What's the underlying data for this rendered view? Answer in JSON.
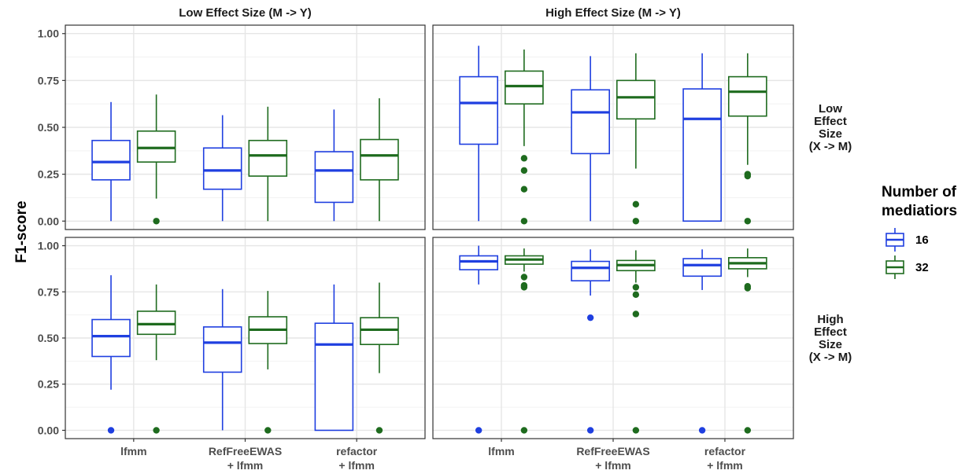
{
  "chart_data": {
    "type": "boxplot",
    "y_axis_title": "F1-score",
    "y_ticks": [
      "0.00",
      "0.25",
      "0.50",
      "0.75",
      "1.00"
    ],
    "y_tick_values": [
      0,
      0.25,
      0.5,
      0.75,
      1.0
    ],
    "ylim": [
      0,
      1
    ],
    "categories": [
      [
        "lfmm"
      ],
      [
        "RefFreeEWAS",
        "+ lfmm"
      ],
      [
        "refactor",
        "+ lfmm"
      ]
    ],
    "column_strips": [
      "Low Effect Size (M -> Y)",
      "High Effect Size (M -> Y)"
    ],
    "row_strips": [
      [
        "Low",
        "Effect",
        "Size",
        "(X -> M)"
      ],
      [
        "High",
        "Effect",
        "Size",
        "(X -> M)"
      ]
    ],
    "legend": {
      "title": [
        "Number of",
        "mediatiors"
      ],
      "entries": [
        {
          "label": "16",
          "color": "#1f3fe0"
        },
        {
          "label": "32",
          "color": "#1e6b1e"
        }
      ]
    },
    "grid": true,
    "legend_position": "right",
    "panels": [
      {
        "row": 0,
        "col": 0,
        "boxes": [
          {
            "cat": 0,
            "series": 0,
            "min": 0.0,
            "q1": 0.22,
            "median": 0.315,
            "q3": 0.43,
            "max": 0.635,
            "outliers": []
          },
          {
            "cat": 0,
            "series": 1,
            "min": 0.12,
            "q1": 0.315,
            "median": 0.39,
            "q3": 0.48,
            "max": 0.675,
            "outliers": [
              0.0
            ]
          },
          {
            "cat": 1,
            "series": 0,
            "min": 0.0,
            "q1": 0.17,
            "median": 0.27,
            "q3": 0.39,
            "max": 0.565,
            "outliers": []
          },
          {
            "cat": 1,
            "series": 1,
            "min": 0.0,
            "q1": 0.24,
            "median": 0.35,
            "q3": 0.43,
            "max": 0.61,
            "outliers": []
          },
          {
            "cat": 2,
            "series": 0,
            "min": 0.0,
            "q1": 0.1,
            "median": 0.27,
            "q3": 0.37,
            "max": 0.595,
            "outliers": []
          },
          {
            "cat": 2,
            "series": 1,
            "min": 0.0,
            "q1": 0.22,
            "median": 0.35,
            "q3": 0.435,
            "max": 0.655,
            "outliers": []
          }
        ]
      },
      {
        "row": 0,
        "col": 1,
        "boxes": [
          {
            "cat": 0,
            "series": 0,
            "min": 0.0,
            "q1": 0.41,
            "median": 0.63,
            "q3": 0.77,
            "max": 0.935,
            "outliers": []
          },
          {
            "cat": 0,
            "series": 1,
            "min": 0.4,
            "q1": 0.625,
            "median": 0.72,
            "q3": 0.8,
            "max": 0.915,
            "outliers": [
              0.335,
              0.27,
              0.17,
              0.0
            ]
          },
          {
            "cat": 1,
            "series": 0,
            "min": 0.0,
            "q1": 0.36,
            "median": 0.58,
            "q3": 0.7,
            "max": 0.88,
            "outliers": []
          },
          {
            "cat": 1,
            "series": 1,
            "min": 0.28,
            "q1": 0.545,
            "median": 0.66,
            "q3": 0.75,
            "max": 0.895,
            "outliers": [
              0.09,
              0.0
            ]
          },
          {
            "cat": 2,
            "series": 0,
            "min": 0.0,
            "q1": 0.0,
            "median": 0.545,
            "q3": 0.705,
            "max": 0.895,
            "outliers": []
          },
          {
            "cat": 2,
            "series": 1,
            "min": 0.3,
            "q1": 0.56,
            "median": 0.69,
            "q3": 0.77,
            "max": 0.895,
            "outliers": [
              0.25,
              0.24,
              0.0
            ]
          }
        ]
      },
      {
        "row": 1,
        "col": 0,
        "boxes": [
          {
            "cat": 0,
            "series": 0,
            "min": 0.22,
            "q1": 0.4,
            "median": 0.51,
            "q3": 0.6,
            "max": 0.84,
            "outliers": [
              0.0
            ]
          },
          {
            "cat": 0,
            "series": 1,
            "min": 0.38,
            "q1": 0.52,
            "median": 0.575,
            "q3": 0.645,
            "max": 0.79,
            "outliers": [
              0.0
            ]
          },
          {
            "cat": 1,
            "series": 0,
            "min": 0.0,
            "q1": 0.315,
            "median": 0.475,
            "q3": 0.56,
            "max": 0.765,
            "outliers": []
          },
          {
            "cat": 1,
            "series": 1,
            "min": 0.33,
            "q1": 0.47,
            "median": 0.545,
            "q3": 0.615,
            "max": 0.755,
            "outliers": [
              0.0
            ]
          },
          {
            "cat": 2,
            "series": 0,
            "min": 0.0,
            "q1": 0.0,
            "median": 0.465,
            "q3": 0.58,
            "max": 0.79,
            "outliers": []
          },
          {
            "cat": 2,
            "series": 1,
            "min": 0.31,
            "q1": 0.465,
            "median": 0.545,
            "q3": 0.61,
            "max": 0.8,
            "outliers": [
              0.0
            ]
          }
        ]
      },
      {
        "row": 1,
        "col": 1,
        "boxes": [
          {
            "cat": 0,
            "series": 0,
            "min": 0.79,
            "q1": 0.87,
            "median": 0.915,
            "q3": 0.945,
            "max": 1.0,
            "outliers": [
              0.0
            ]
          },
          {
            "cat": 0,
            "series": 1,
            "min": 0.86,
            "q1": 0.9,
            "median": 0.925,
            "q3": 0.945,
            "max": 0.985,
            "outliers": [
              0.83,
              0.785,
              0.775,
              0.0
            ]
          },
          {
            "cat": 1,
            "series": 0,
            "min": 0.73,
            "q1": 0.81,
            "median": 0.88,
            "q3": 0.915,
            "max": 0.98,
            "outliers": [
              0.61,
              0.0
            ]
          },
          {
            "cat": 1,
            "series": 1,
            "min": 0.8,
            "q1": 0.865,
            "median": 0.895,
            "q3": 0.92,
            "max": 0.975,
            "outliers": [
              0.775,
              0.735,
              0.63,
              0.0
            ]
          },
          {
            "cat": 2,
            "series": 0,
            "min": 0.76,
            "q1": 0.835,
            "median": 0.895,
            "q3": 0.93,
            "max": 0.98,
            "outliers": [
              0.0
            ]
          },
          {
            "cat": 2,
            "series": 1,
            "min": 0.83,
            "q1": 0.875,
            "median": 0.905,
            "q3": 0.935,
            "max": 0.985,
            "outliers": [
              0.78,
              0.77,
              0.0
            ]
          }
        ]
      }
    ]
  }
}
